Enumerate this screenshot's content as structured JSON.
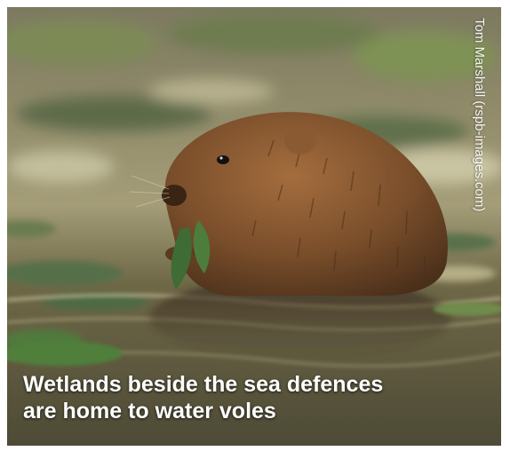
{
  "image": {
    "description_tag": "water-vole-photo"
  },
  "caption": {
    "line1": "Wetlands beside the sea defences",
    "line2": "are home to water voles"
  },
  "credit": {
    "text": "Tom Marshall (rspb-images.com)"
  },
  "colors": {
    "water_dark": "#5f5f42",
    "water_light": "#b9b38c",
    "fur": "#7b4f2b",
    "leaf": "#3f6b35",
    "text": "#ffffff"
  }
}
